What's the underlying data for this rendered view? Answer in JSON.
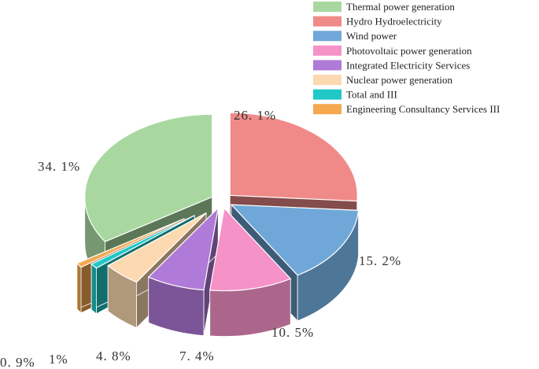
{
  "chart_data": {
    "type": "pie3d",
    "categories": [
      "Thermal power generation",
      "Hydro Hydroelectricity",
      "Wind power",
      "Photovoltaic power generation",
      "Integrated Electricity Services",
      "Nuclear power generation",
      "Total and III",
      "Engineering Consultancy Services III"
    ],
    "values": [
      34.1,
      26.1,
      15.2,
      10.5,
      7.4,
      4.8,
      1,
      0.9
    ],
    "value_labels": [
      "34. 1%",
      "26. 1%",
      "15. 2%",
      "10. 5%",
      "7. 4%",
      "4. 8%",
      "1%",
      "0. 9%"
    ],
    "colors": [
      "#a8d8a0",
      "#f08a88",
      "#6fa8d8",
      "#f592c8",
      "#b07ad8",
      "#fcd9b0",
      "#20c8c8",
      "#f5a850"
    ],
    "legend": "upper right"
  }
}
